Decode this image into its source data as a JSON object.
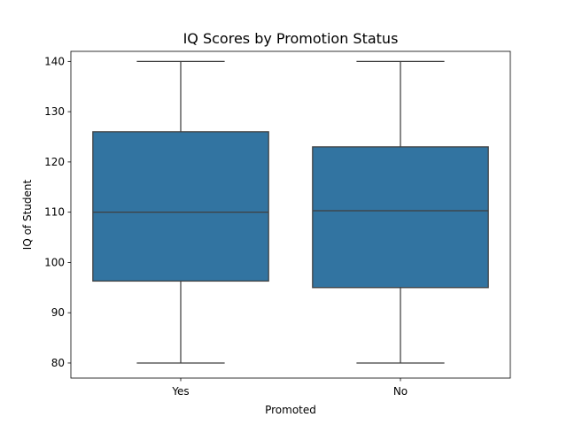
{
  "chart_data": {
    "type": "box",
    "title": "IQ Scores by Promotion Status",
    "xlabel": "Promoted",
    "ylabel": "IQ of Student",
    "categories": [
      "Yes",
      "No"
    ],
    "ylim": [
      77,
      142
    ],
    "yticks": [
      80,
      90,
      100,
      110,
      120,
      130,
      140
    ],
    "boxes": [
      {
        "category": "Yes",
        "min": 80,
        "q1": 96.3,
        "median": 110,
        "q3": 126,
        "max": 140
      },
      {
        "category": "No",
        "min": 80,
        "q1": 95,
        "median": 110.3,
        "q3": 123,
        "max": 140
      }
    ],
    "box_color": "#3274a1",
    "line_color": "#3f3f3f",
    "grid": false,
    "legend": "none"
  }
}
